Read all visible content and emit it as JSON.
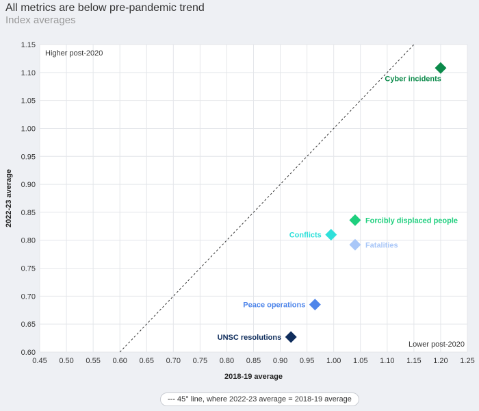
{
  "header": {
    "title": "All metrics are below pre-pandemic trend",
    "subtitle": "Index averages"
  },
  "legend": {
    "label": "--- 45° line, where 2022-23 average = 2018-19 average"
  },
  "chart_data": {
    "type": "scatter",
    "xlabel": "2018-19 average",
    "ylabel": "2022-23 average",
    "xlim": [
      0.45,
      1.25
    ],
    "ylim": [
      0.6,
      1.15
    ],
    "xticks": [
      "0.45",
      "0.50",
      "0.55",
      "0.60",
      "0.65",
      "0.70",
      "0.75",
      "0.80",
      "0.85",
      "0.90",
      "0.95",
      "1.00",
      "1.05",
      "1.10",
      "1.15",
      "1.20",
      "1.25"
    ],
    "yticks": [
      "0.60",
      "0.65",
      "0.70",
      "0.75",
      "0.80",
      "0.85",
      "0.90",
      "0.95",
      "1.00",
      "1.05",
      "1.10",
      "1.15"
    ],
    "grid": true,
    "annotations": {
      "top_left": "Higher post-2020",
      "bottom_right": "Lower post-2020"
    },
    "reference_line": {
      "type": "45-degree",
      "style": "dashed",
      "color": "#333333"
    },
    "points": [
      {
        "label": "Cyber incidents",
        "x": 1.2,
        "y": 1.108,
        "color": "#0b8a4a",
        "label_pos": "below-left"
      },
      {
        "label": "Forcibly displaced people",
        "x": 1.04,
        "y": 0.836,
        "color": "#1fcf7e",
        "label_pos": "right"
      },
      {
        "label": "Conflicts",
        "x": 0.995,
        "y": 0.81,
        "color": "#2fe0da",
        "label_pos": "left"
      },
      {
        "label": "Fatalities",
        "x": 1.04,
        "y": 0.792,
        "color": "#a9c7f8",
        "label_pos": "right"
      },
      {
        "label": "Peace operations",
        "x": 0.965,
        "y": 0.685,
        "color": "#4f86ea",
        "label_pos": "left"
      },
      {
        "label": "UNSC resolutions",
        "x": 0.92,
        "y": 0.627,
        "color": "#0f2d5c",
        "label_pos": "left"
      }
    ]
  }
}
